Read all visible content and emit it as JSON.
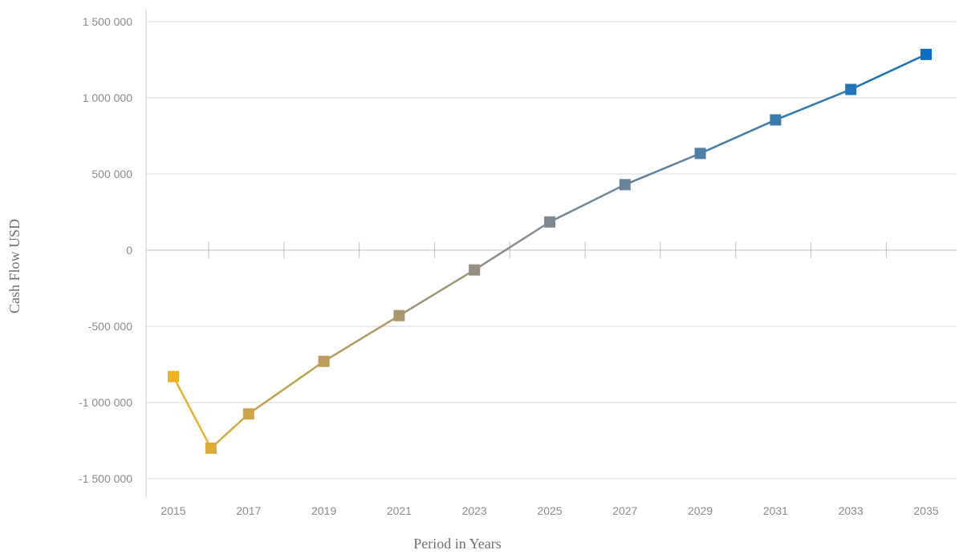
{
  "chart_data": {
    "type": "line",
    "title": "",
    "xlabel": "Period in Years",
    "ylabel": "Cash Flow USD",
    "ylim": [
      -1500000,
      1500000
    ],
    "yticks": [
      1500000,
      1000000,
      500000,
      0,
      -500000,
      -1000000,
      -1500000
    ],
    "ytick_labels": [
      "1 500 000",
      "1 000 000",
      "500 000",
      "0",
      "-500 000",
      "-1 000 000",
      "-1 500 000"
    ],
    "xtick_labels": [
      "2015",
      "2017",
      "2019",
      "2021",
      "2023",
      "2025",
      "2027",
      "2029",
      "2031",
      "2033",
      "2035"
    ],
    "grid": true,
    "gradient_colors": [
      "#f2b21f",
      "#8c8c8c",
      "#0a6fc0"
    ],
    "series": [
      {
        "x": [
          2015,
          2016,
          2017,
          2019,
          2021,
          2023,
          2025,
          2027,
          2029,
          2031,
          2033,
          2035
        ],
        "values": [
          -830000,
          -1300000,
          -1075000,
          -730000,
          -430000,
          -130000,
          185000,
          430000,
          635000,
          855000,
          1055000,
          1285000
        ]
      }
    ]
  }
}
